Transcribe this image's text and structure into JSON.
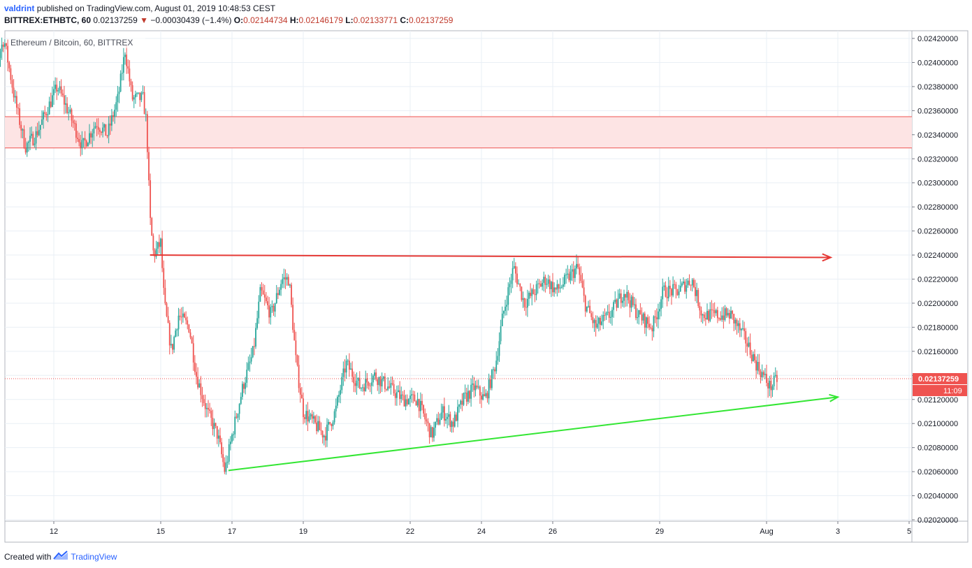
{
  "header": {
    "author": "valdrint",
    "published_text": "published on TradingView.com, August 01, 2019 10:48:53 CEST",
    "symbol": "BITTREX:ETHBTC, 60",
    "last_price": "0.02137259",
    "down_arrow": "▼",
    "change": "−0.00030439 (−1.4%)",
    "o_label": "O:",
    "o_value": "0.02144734",
    "h_label": "H:",
    "h_value": "0.02146179",
    "l_label": "L:",
    "l_value": "0.02133771",
    "c_label": "C:",
    "c_value": "0.02137259"
  },
  "footer": {
    "created_with": "Created with",
    "brand": "TradingView"
  },
  "colors": {
    "up": "#26a69a",
    "down": "#ef5350",
    "resistance_line": "#e53935",
    "support_line": "#33e633",
    "zone_fill": "#fde4e4",
    "zone_border": "#ef5350",
    "price_label_bg": "#ef5350"
  },
  "chart_data": {
    "type": "candlestick",
    "title": "Ethereum / Bitcoin, 60, BITTREX",
    "ylim": [
      0.0202,
      0.0243
    ],
    "y_ticks": [
      "0.02020000",
      "0.02040000",
      "0.02060000",
      "0.02080000",
      "0.02100000",
      "0.02120000",
      "0.02140000",
      "0.02160000",
      "0.02180000",
      "0.02200000",
      "0.02220000",
      "0.02240000",
      "0.02260000",
      "0.02280000",
      "0.02300000",
      "0.02320000",
      "0.02340000",
      "0.02360000",
      "0.02380000",
      "0.02400000",
      "0.02420000"
    ],
    "x_ticks": [
      {
        "label": "12",
        "day": 12
      },
      {
        "label": "15",
        "day": 15
      },
      {
        "label": "17",
        "day": 17
      },
      {
        "label": "19",
        "day": 19
      },
      {
        "label": "22",
        "day": 22
      },
      {
        "label": "24",
        "day": 24
      },
      {
        "label": "26",
        "day": 26
      },
      {
        "label": "29",
        "day": 29
      },
      {
        "label": "Aug",
        "day": 32
      },
      {
        "label": "3",
        "day": 34
      },
      {
        "label": "5",
        "day": 36
      }
    ],
    "price_path": [
      [
        10.0,
        0.0236
      ],
      [
        10.3,
        0.0239
      ],
      [
        10.6,
        0.0242
      ],
      [
        10.9,
        0.0237
      ],
      [
        11.2,
        0.0233
      ],
      [
        11.5,
        0.0234
      ],
      [
        11.8,
        0.0236
      ],
      [
        12.1,
        0.0238
      ],
      [
        12.4,
        0.0236
      ],
      [
        12.8,
        0.0233
      ],
      [
        13.2,
        0.0235
      ],
      [
        13.5,
        0.0234
      ],
      [
        13.8,
        0.0237
      ],
      [
        14.0,
        0.0241
      ],
      [
        14.2,
        0.0237
      ],
      [
        14.5,
        0.0237
      ],
      [
        14.6,
        0.0235
      ],
      [
        14.7,
        0.0227
      ],
      [
        14.8,
        0.0224
      ],
      [
        15.0,
        0.0225
      ],
      [
        15.1,
        0.022
      ],
      [
        15.3,
        0.0216
      ],
      [
        15.5,
        0.0219
      ],
      [
        15.8,
        0.0218
      ],
      [
        16.0,
        0.0214
      ],
      [
        16.3,
        0.0211
      ],
      [
        16.6,
        0.0209
      ],
      [
        16.8,
        0.0206
      ],
      [
        17.0,
        0.0209
      ],
      [
        17.3,
        0.0213
      ],
      [
        17.6,
        0.0216
      ],
      [
        17.8,
        0.0221
      ],
      [
        18.1,
        0.0219
      ],
      [
        18.4,
        0.0222
      ],
      [
        18.6,
        0.0222
      ],
      [
        18.8,
        0.0215
      ],
      [
        19.0,
        0.0211
      ],
      [
        19.3,
        0.021
      ],
      [
        19.6,
        0.0209
      ],
      [
        19.9,
        0.0211
      ],
      [
        20.2,
        0.0215
      ],
      [
        20.6,
        0.0213
      ],
      [
        21.0,
        0.0214
      ],
      [
        21.4,
        0.0213
      ],
      [
        21.8,
        0.0212
      ],
      [
        22.2,
        0.0212
      ],
      [
        22.6,
        0.0209
      ],
      [
        22.9,
        0.0211
      ],
      [
        23.2,
        0.021
      ],
      [
        23.5,
        0.0212
      ],
      [
        23.8,
        0.0213
      ],
      [
        24.1,
        0.0212
      ],
      [
        24.4,
        0.0215
      ],
      [
        24.6,
        0.0219
      ],
      [
        24.9,
        0.0223
      ],
      [
        25.2,
        0.022
      ],
      [
        25.5,
        0.0221
      ],
      [
        25.8,
        0.0222
      ],
      [
        26.1,
        0.0221
      ],
      [
        26.4,
        0.0222
      ],
      [
        26.7,
        0.0223
      ],
      [
        26.9,
        0.022
      ],
      [
        27.2,
        0.0218
      ],
      [
        27.6,
        0.0219
      ],
      [
        28.0,
        0.0221
      ],
      [
        28.4,
        0.0219
      ],
      [
        28.8,
        0.0218
      ],
      [
        29.1,
        0.0221
      ],
      [
        29.5,
        0.0221
      ],
      [
        29.9,
        0.0222
      ],
      [
        30.2,
        0.0219
      ],
      [
        30.6,
        0.0219
      ],
      [
        31.0,
        0.0219
      ],
      [
        31.4,
        0.0217
      ],
      [
        31.7,
        0.0215
      ],
      [
        31.9,
        0.0214
      ],
      [
        32.1,
        0.0213
      ],
      [
        32.3,
        0.02137
      ]
    ],
    "resistance_zone": {
      "low": 0.02329,
      "high": 0.02355
    },
    "resistance_line": {
      "from": [
        14.7,
        0.0224
      ],
      "to": [
        33.8,
        0.02238
      ]
    },
    "support_line": {
      "from": [
        16.9,
        0.02061
      ],
      "to": [
        34.0,
        0.02122
      ]
    },
    "last_price": {
      "value": 0.02137259,
      "label": "0.02137259",
      "countdown": "11:09"
    }
  }
}
